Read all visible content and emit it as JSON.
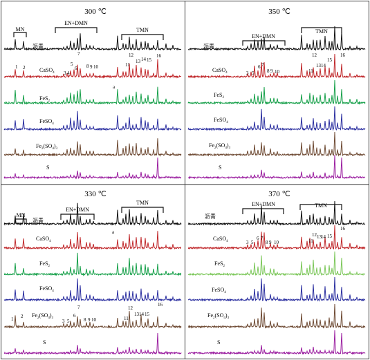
{
  "colors": {
    "pitch": "#111111",
    "CaSO4": "#c0282b",
    "FeS2": "#17a04a",
    "FeS2_370": "#7cc75a",
    "FeSO4": "#2b2fa0",
    "Fe2SO43": "#6e4a33",
    "S": "#9b1fa0"
  },
  "chart_data": [
    {
      "type": "line",
      "title": "300 ℃",
      "brackets": [
        "MN",
        "EN+DMN",
        "TMN"
      ],
      "series": [
        {
          "name": "沥青",
          "subscript": ""
        },
        {
          "name": "CaSO",
          "subscript": "4"
        },
        {
          "name": "FeS",
          "subscript": "2"
        },
        {
          "name": "FeSO",
          "subscript": "4"
        },
        {
          "name": "Fe",
          "subscript": "2",
          "suffix": "(SO",
          "subscript2": "4",
          "suffix2": ")",
          "subscript3": "3"
        },
        {
          "name": "S",
          "subscript": ""
        }
      ],
      "peak_labels": [
        "1",
        "2",
        "3",
        "4",
        "5",
        "6",
        "7",
        "8",
        "9",
        "10",
        "11",
        "12",
        "13",
        "14",
        "15",
        "16",
        "a"
      ]
    },
    {
      "type": "line",
      "title": "350 ℃",
      "brackets": [
        "EN+DMN",
        "TMN"
      ],
      "series": [
        {
          "name": "沥青",
          "subscript": ""
        },
        {
          "name": "CaSO",
          "subscript": "4"
        },
        {
          "name": "FeS",
          "subscript": "2"
        },
        {
          "name": "FeSO",
          "subscript": "4"
        },
        {
          "name": "Fe",
          "subscript": "2",
          "suffix": "(SO",
          "subscript2": "4",
          "suffix2": ")",
          "subscript3": "3"
        },
        {
          "name": "S",
          "subscript": ""
        }
      ],
      "peak_labels": [
        "3",
        "5",
        "6",
        "7",
        "8",
        "9",
        "10",
        "11",
        "12",
        "13",
        "14",
        "15",
        "16"
      ]
    },
    {
      "type": "line",
      "title": "330 ℃",
      "brackets": [
        "MN",
        "EN+DMN",
        "TMN"
      ],
      "series": [
        {
          "name": "沥青",
          "subscript": ""
        },
        {
          "name": "CaSO",
          "subscript": "4"
        },
        {
          "name": "FeS",
          "subscript": "2"
        },
        {
          "name": "FeSO",
          "subscript": "4"
        },
        {
          "name": "Fe",
          "subscript": "2",
          "suffix": "(SO",
          "subscript2": "4",
          "suffix2": ")",
          "subscript3": "3"
        },
        {
          "name": "S",
          "subscript": ""
        }
      ],
      "peak_labels": [
        "1",
        "2",
        "3",
        "5",
        "6",
        "7",
        "8",
        "9",
        "10",
        "11",
        "12",
        "13",
        "14",
        "15",
        "16",
        "a"
      ]
    },
    {
      "type": "line",
      "title": "370 ℃",
      "brackets": [
        "EN+DMN",
        "TMN"
      ],
      "series": [
        {
          "name": "沥青",
          "subscript": ""
        },
        {
          "name": "CaSO",
          "subscript": "4"
        },
        {
          "name": "FeS",
          "subscript": "2"
        },
        {
          "name": "FeSO",
          "subscript": "4"
        },
        {
          "name": "Fe",
          "subscript": "2",
          "suffix": "(SO",
          "subscript2": "4",
          "suffix2": ")",
          "subscript3": "3"
        },
        {
          "name": "S",
          "subscript": ""
        }
      ],
      "peak_labels": [
        "3",
        "5",
        "6",
        "7",
        "8",
        "9",
        "10",
        "11",
        "12",
        "13",
        "14",
        "15",
        "16"
      ]
    }
  ]
}
